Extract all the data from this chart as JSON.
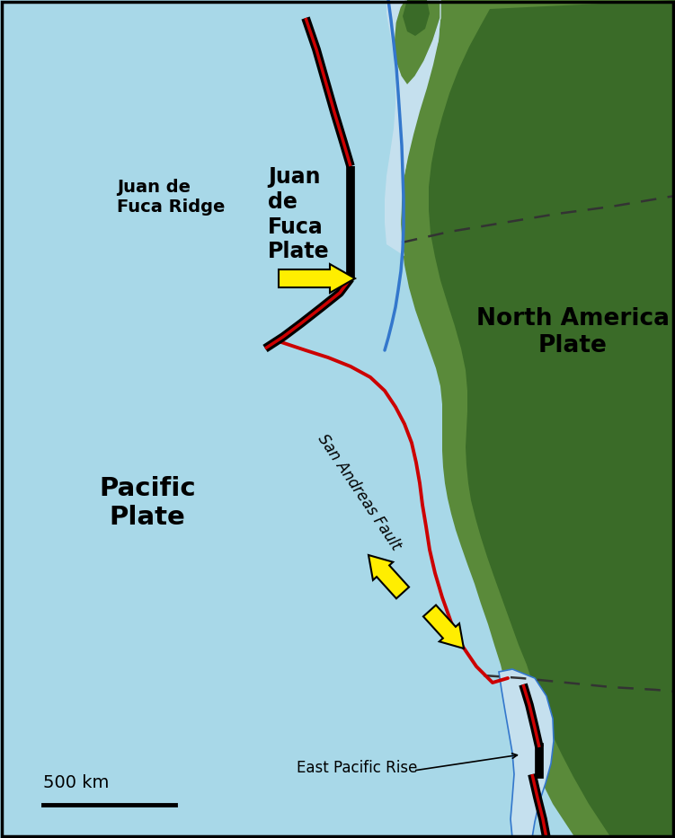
{
  "ocean_color": "#a8d8e8",
  "land_dark": "#3a6b28",
  "land_mid": "#5a8a3a",
  "land_light": "#6faa48",
  "subduction_color": "#c5e0ee",
  "blue_line_color": "#3377cc",
  "san_andreas_color": "#cc0000",
  "divergent_color": "#cc0000",
  "transform_color": "#000000",
  "arrow_color": "#ffee00",
  "arrow_edge": "#000000",
  "dashed_color": "#333333",
  "scale_bar_text": "500 km",
  "label_juan_ridge": "Juan de\nFuca Ridge",
  "label_juan_plate": "Juan\nde\nFuca\nPlate",
  "label_pacific": "Pacific\nPlate",
  "label_north_america": "North America\nPlate",
  "label_san_andreas": "San Andreas Fault",
  "label_east_pacific": "East Pacific Rise"
}
